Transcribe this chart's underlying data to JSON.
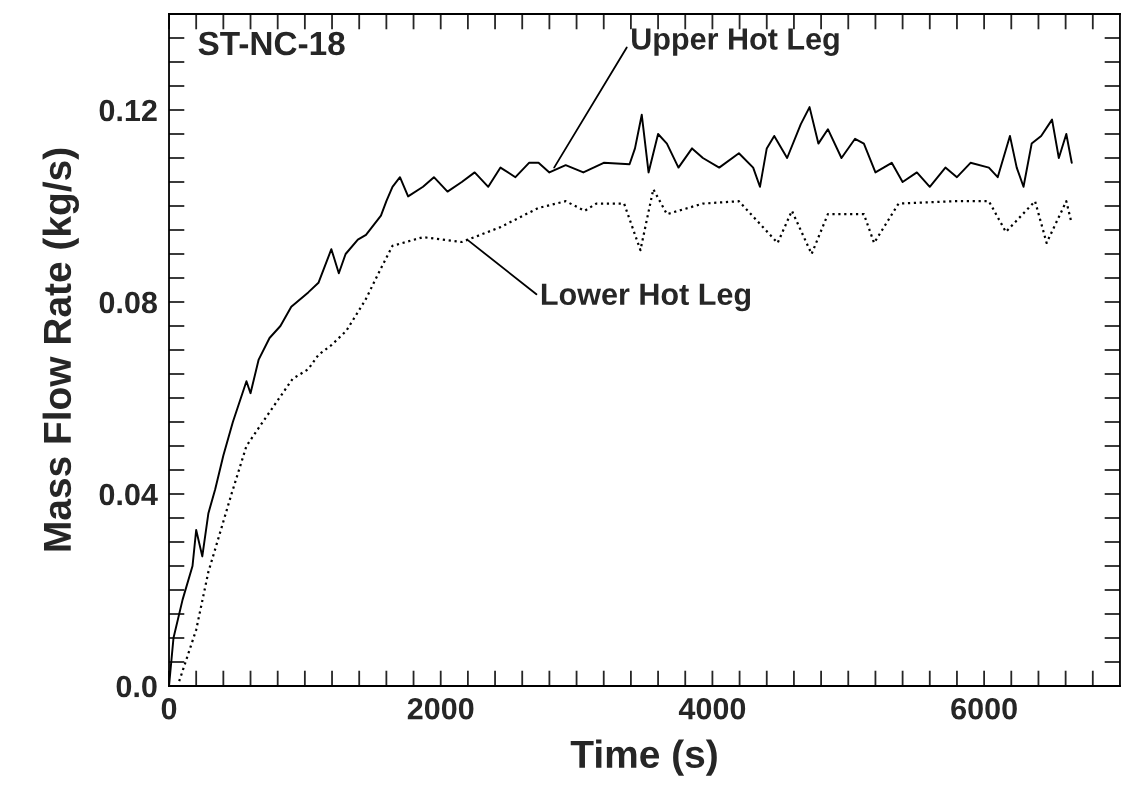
{
  "chart_data": {
    "type": "line",
    "xlabel": "Time (s)",
    "ylabel": "Mass Flow Rate (kg/s)",
    "xlim": [
      0,
      7000
    ],
    "ylim": [
      0,
      0.14
    ],
    "xticks": [
      0,
      {
        "value": 200,
        "label": null
      },
      {
        "value": 400,
        "label": null
      },
      {
        "value": 600,
        "label": null
      },
      {
        "value": 800,
        "label": null
      },
      {
        "value": 1000,
        "label": null
      },
      {
        "value": 1200,
        "label": null
      },
      {
        "value": 1400,
        "label": null
      },
      {
        "value": 1600,
        "label": null
      },
      {
        "value": 1800,
        "label": null
      },
      2000,
      {
        "value": 2200,
        "label": null
      },
      {
        "value": 2400,
        "label": null
      },
      {
        "value": 2600,
        "label": null
      },
      {
        "value": 2800,
        "label": null
      },
      {
        "value": 3000,
        "label": null
      },
      {
        "value": 3200,
        "label": null
      },
      {
        "value": 3400,
        "label": null
      },
      {
        "value": 3600,
        "label": null
      },
      {
        "value": 3800,
        "label": null
      },
      4000,
      {
        "value": 4200,
        "label": null
      },
      {
        "value": 4400,
        "label": null
      },
      {
        "value": 4600,
        "label": null
      },
      {
        "value": 4800,
        "label": null
      },
      {
        "value": 5000,
        "label": null
      },
      {
        "value": 5200,
        "label": null
      },
      {
        "value": 5400,
        "label": null
      },
      {
        "value": 5600,
        "label": null
      },
      {
        "value": 5800,
        "label": null
      },
      6000,
      {
        "value": 6200,
        "label": null
      },
      {
        "value": 6400,
        "label": null
      },
      {
        "value": 6600,
        "label": null
      },
      {
        "value": 6800,
        "label": null
      }
    ],
    "yticks": [
      {
        "value": 0,
        "label": "0.0"
      },
      {
        "value": 0.005,
        "label": null
      },
      {
        "value": 0.01,
        "label": null
      },
      {
        "value": 0.015,
        "label": null
      },
      {
        "value": 0.02,
        "label": null
      },
      {
        "value": 0.025,
        "label": null
      },
      {
        "value": 0.03,
        "label": null
      },
      {
        "value": 0.035,
        "label": null
      },
      0.04,
      {
        "value": 0.045,
        "label": null
      },
      {
        "value": 0.05,
        "label": null
      },
      {
        "value": 0.055,
        "label": null
      },
      {
        "value": 0.06,
        "label": null
      },
      {
        "value": 0.065,
        "label": null
      },
      {
        "value": 0.07,
        "label": null
      },
      {
        "value": 0.075,
        "label": null
      },
      0.08,
      {
        "value": 0.085,
        "label": null
      },
      {
        "value": 0.09,
        "label": null
      },
      {
        "value": 0.095,
        "label": null
      },
      {
        "value": 0.1,
        "label": null
      },
      {
        "value": 0.105,
        "label": null
      },
      {
        "value": 0.11,
        "label": null
      },
      {
        "value": 0.115,
        "label": null
      },
      0.12,
      {
        "value": 0.125,
        "label": null
      },
      {
        "value": 0.13,
        "label": null
      },
      {
        "value": 0.135,
        "label": null
      }
    ],
    "grid": false,
    "legend": false,
    "annotations": [
      "ST-NC-18",
      {
        "text": "Upper Hot Leg",
        "x": 2835,
        "y": 0.108
      },
      {
        "text": "Lower Hot Leg",
        "x": 2195,
        "y": 0.093
      }
    ],
    "series": [
      {
        "color": "#000000",
        "line_style": "solid",
        "x": [
          0,
          33,
          100,
          173,
          200,
          245,
          290,
          340,
          400,
          470,
          570,
          600,
          660,
          740,
          820,
          900,
          1025,
          1100,
          1195,
          1250,
          1300,
          1390,
          1450,
          1560,
          1600,
          1645,
          1700,
          1760,
          1870,
          1950,
          2050,
          2155,
          2250,
          2350,
          2440,
          2550,
          2650,
          2720,
          2800,
          2920,
          3050,
          3200,
          3390,
          3430,
          3480,
          3530,
          3600,
          3665,
          3750,
          3850,
          3930,
          4050,
          4195,
          4300,
          4350,
          4400,
          4455,
          4550,
          4650,
          4715,
          4780,
          4850,
          4950,
          5050,
          5115,
          5200,
          5320,
          5400,
          5505,
          5600,
          5715,
          5800,
          5900,
          6035,
          6100,
          6190,
          6240,
          6290,
          6350,
          6420,
          6500,
          6550,
          6605,
          6645
        ],
        "values": [
          0.0,
          0.01,
          0.018,
          0.025,
          0.0325,
          0.027,
          0.036,
          0.041,
          0.048,
          0.055,
          0.0635,
          0.061,
          0.068,
          0.0725,
          0.075,
          0.079,
          0.082,
          0.084,
          0.091,
          0.086,
          0.09,
          0.093,
          0.094,
          0.098,
          0.101,
          0.104,
          0.106,
          0.102,
          0.104,
          0.106,
          0.103,
          0.105,
          0.107,
          0.104,
          0.108,
          0.106,
          0.109,
          0.109,
          0.107,
          0.1085,
          0.107,
          0.109,
          0.1087,
          0.112,
          0.119,
          0.107,
          0.115,
          0.113,
          0.108,
          0.112,
          0.11,
          0.108,
          0.111,
          0.108,
          0.104,
          0.112,
          0.1146,
          0.11,
          0.117,
          0.1206,
          0.113,
          0.116,
          0.11,
          0.114,
          0.113,
          0.107,
          0.109,
          0.105,
          0.107,
          0.104,
          0.108,
          0.106,
          0.109,
          0.108,
          0.106,
          0.1146,
          0.108,
          0.104,
          0.113,
          0.1146,
          0.118,
          0.11,
          0.115,
          0.109
        ]
      },
      {
        "color": "#000000",
        "line_style": "dotted",
        "x": [
          75,
          200,
          290,
          345,
          460,
          570,
          690,
          910,
          1025,
          1100,
          1195,
          1305,
          1445,
          1560,
          1645,
          1870,
          2155,
          2440,
          2720,
          2920,
          3060,
          3145,
          3350,
          3470,
          3565,
          3665,
          3930,
          4195,
          4480,
          4585,
          4730,
          4850,
          5115,
          5190,
          5370,
          5770,
          6035,
          6160,
          6375,
          6460,
          6605,
          6640
        ],
        "values": [
          0.001,
          0.0117,
          0.0238,
          0.029,
          0.04,
          0.05,
          0.055,
          0.064,
          0.066,
          0.069,
          0.071,
          0.074,
          0.0804,
          0.087,
          0.0917,
          0.0935,
          0.0925,
          0.0956,
          0.0996,
          0.101,
          0.099,
          0.1005,
          0.1005,
          0.0908,
          0.1035,
          0.0983,
          0.1005,
          0.101,
          0.0923,
          0.099,
          0.09,
          0.0983,
          0.0983,
          0.0923,
          0.1005,
          0.101,
          0.101,
          0.0946,
          0.101,
          0.0923,
          0.101,
          0.0969
        ]
      }
    ]
  }
}
